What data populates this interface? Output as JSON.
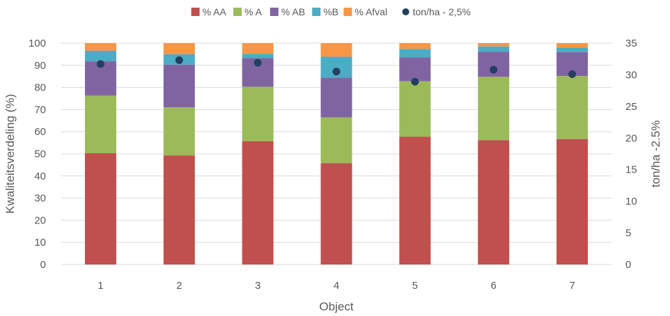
{
  "chart_data": {
    "type": "bar",
    "stacked": true,
    "title": "",
    "xlabel": "Object",
    "ylabel": "Kwaliteitsverdeling (%)",
    "y2label": "ton/ha -2.5%",
    "categories": [
      "1",
      "2",
      "3",
      "4",
      "5",
      "6",
      "7"
    ],
    "ylim": [
      0,
      100
    ],
    "yticks": [
      0,
      10,
      20,
      30,
      40,
      50,
      60,
      70,
      80,
      90,
      100
    ],
    "y2lim": [
      0,
      35
    ],
    "y2ticks": [
      0,
      5,
      10,
      15,
      20,
      25,
      30,
      35
    ],
    "grid": true,
    "legend_position": "top",
    "series": [
      {
        "name": "% AA",
        "color": "#c0504d",
        "values": [
          50.3,
          49.3,
          55.7,
          45.8,
          57.7,
          56.2,
          56.7
        ]
      },
      {
        "name": "% A",
        "color": "#9bbb59",
        "values": [
          26.0,
          21.7,
          24.6,
          20.7,
          25.1,
          28.6,
          28.5
        ]
      },
      {
        "name": "% AB",
        "color": "#8064a2",
        "values": [
          15.5,
          19.3,
          13.0,
          17.9,
          10.8,
          11.3,
          10.8
        ]
      },
      {
        "name": "%B",
        "color": "#4bacc6",
        "values": [
          4.8,
          4.7,
          1.9,
          9.5,
          3.8,
          2.4,
          2.0
        ]
      },
      {
        "name": "% Afval",
        "color": "#f79646",
        "values": [
          3.4,
          5.0,
          4.8,
          6.1,
          2.6,
          1.5,
          2.0
        ]
      }
    ],
    "line_series": {
      "name": "ton/ha - 2,5%",
      "color": "#243f60",
      "axis": "right",
      "values": [
        31.7,
        32.3,
        31.9,
        30.5,
        28.9,
        30.8,
        30.1
      ]
    }
  }
}
